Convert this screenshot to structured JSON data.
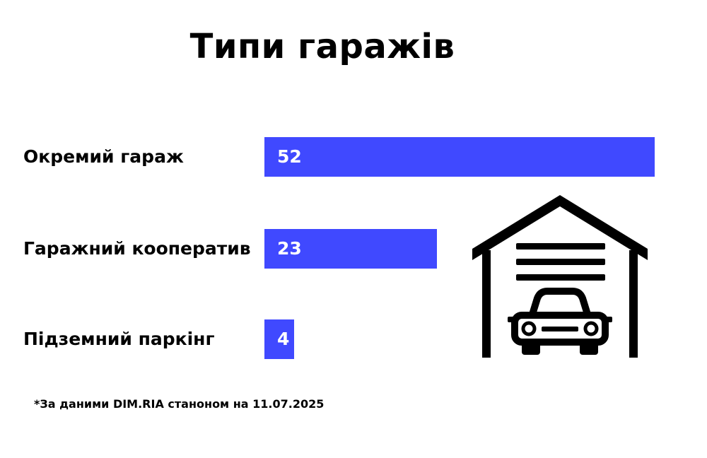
{
  "chart_data": {
    "type": "bar",
    "orientation": "horizontal",
    "title": "Типи гаражів",
    "categories": [
      "Окремий гараж",
      "Гаражний кооператив",
      "Підземний паркінг"
    ],
    "values": [
      52,
      23,
      4
    ],
    "xlim": [
      0,
      52
    ],
    "grid": false,
    "axes_visible": false,
    "bar_color": "#4049FF",
    "value_label_color": "#FFFFFF",
    "footnote": "*За даними DIM.RIA станоном на 11.07.2025"
  },
  "icon": {
    "name": "garage-with-car-icon"
  }
}
